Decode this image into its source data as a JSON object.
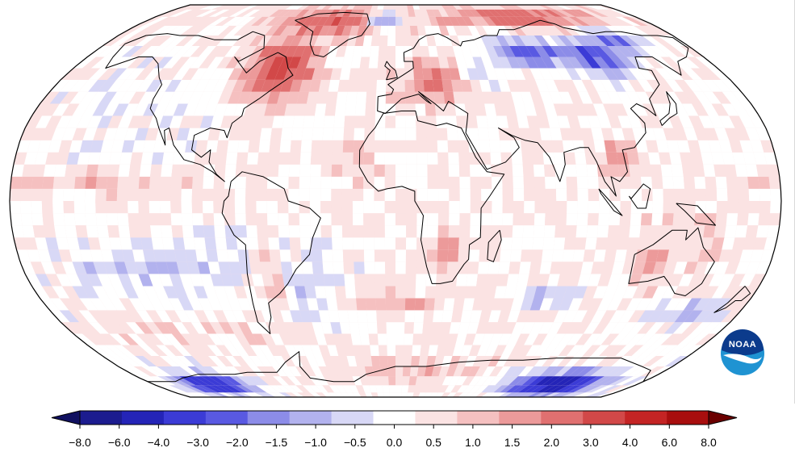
{
  "map": {
    "projection": "robinson",
    "colors": {
      "ocean_base": "#fbe3e3",
      "land_outline": "#000000",
      "frame": "#000000"
    }
  },
  "colorbar": {
    "labels": [
      "−8.0",
      "−6.0",
      "−4.0",
      "−3.0",
      "−2.0",
      "−1.5",
      "−1.0",
      "−0.5",
      "0.0",
      "0.5",
      "1.0",
      "1.5",
      "2.0",
      "3.0",
      "4.0",
      "6.0",
      "8.0"
    ],
    "colors": [
      "#1c1c8f",
      "#2424b7",
      "#3b3bd6",
      "#5959e2",
      "#8c8ce8",
      "#b2b2ee",
      "#d8d8f6",
      "#ffffff",
      "#fbe3e3",
      "#f5c0c0",
      "#ec9a9a",
      "#e07070",
      "#d24848",
      "#c42424",
      "#a80e0e"
    ],
    "under_color": "#101060",
    "over_color": "#6b0000"
  },
  "logo": {
    "text": "NOAA",
    "colors": {
      "outer": "#1f93d2",
      "inner": "#0c3b8c",
      "bird": "#ffffff"
    }
  }
}
